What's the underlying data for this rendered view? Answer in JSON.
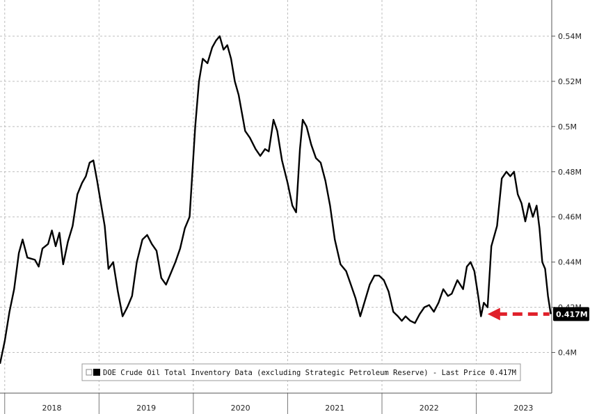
{
  "chart_data": {
    "type": "line",
    "title": "",
    "xlabel": "",
    "ylabel": "",
    "y_unit": "M barrels",
    "ylim": [
      0.382,
      0.556
    ],
    "x_range": [
      2017.95,
      2023.8
    ],
    "x_tick_labels": [
      "2018",
      "2019",
      "2020",
      "2021",
      "2022",
      "2023"
    ],
    "y_ticks": [
      {
        "value": 0.4,
        "label": "0.4M"
      },
      {
        "value": 0.42,
        "label": "0.42M"
      },
      {
        "value": 0.44,
        "label": "0.44M"
      },
      {
        "value": 0.46,
        "label": "0.46M"
      },
      {
        "value": 0.48,
        "label": "0.48M"
      },
      {
        "value": 0.5,
        "label": "0.5M"
      },
      {
        "value": 0.52,
        "label": "0.52M"
      },
      {
        "value": 0.54,
        "label": "0.54M"
      }
    ],
    "grid": true,
    "legend_position": "bottom-center",
    "legend": {
      "text": "DOE Crude Oil Total Inventory Data (excluding Strategic Petroleum Reserve) - Last Price 0.417M"
    },
    "last_value_label": "0.417M",
    "line_color": "#000000",
    "arrow_color": "#e0202a",
    "series": [
      {
        "name": "DOE Crude Oil Total Inventory Data (excluding Strategic Petroleum Reserve)",
        "points": [
          [
            2017.95,
            0.395
          ],
          [
            2018.0,
            0.405
          ],
          [
            2018.05,
            0.418
          ],
          [
            2018.1,
            0.428
          ],
          [
            2018.15,
            0.444
          ],
          [
            2018.19,
            0.45
          ],
          [
            2018.24,
            0.442
          ],
          [
            2018.32,
            0.441
          ],
          [
            2018.36,
            0.438
          ],
          [
            2018.4,
            0.446
          ],
          [
            2018.46,
            0.448
          ],
          [
            2018.5,
            0.454
          ],
          [
            2018.54,
            0.447
          ],
          [
            2018.58,
            0.453
          ],
          [
            2018.62,
            0.439
          ],
          [
            2018.67,
            0.449
          ],
          [
            2018.72,
            0.456
          ],
          [
            2018.77,
            0.47
          ],
          [
            2018.82,
            0.475
          ],
          [
            2018.86,
            0.478
          ],
          [
            2018.9,
            0.484
          ],
          [
            2018.94,
            0.485
          ],
          [
            2018.98,
            0.476
          ],
          [
            2019.02,
            0.466
          ],
          [
            2019.06,
            0.456
          ],
          [
            2019.1,
            0.437
          ],
          [
            2019.15,
            0.44
          ],
          [
            2019.2,
            0.427
          ],
          [
            2019.25,
            0.416
          ],
          [
            2019.3,
            0.42
          ],
          [
            2019.35,
            0.425
          ],
          [
            2019.4,
            0.44
          ],
          [
            2019.46,
            0.45
          ],
          [
            2019.51,
            0.452
          ],
          [
            2019.56,
            0.448
          ],
          [
            2019.61,
            0.445
          ],
          [
            2019.66,
            0.433
          ],
          [
            2019.71,
            0.43
          ],
          [
            2019.76,
            0.435
          ],
          [
            2019.81,
            0.44
          ],
          [
            2019.86,
            0.446
          ],
          [
            2019.91,
            0.455
          ],
          [
            2019.96,
            0.46
          ],
          [
            2020.02,
            0.5
          ],
          [
            2020.06,
            0.52
          ],
          [
            2020.1,
            0.53
          ],
          [
            2020.15,
            0.528
          ],
          [
            2020.2,
            0.535
          ],
          [
            2020.24,
            0.538
          ],
          [
            2020.28,
            0.54
          ],
          [
            2020.32,
            0.534
          ],
          [
            2020.36,
            0.536
          ],
          [
            2020.4,
            0.53
          ],
          [
            2020.44,
            0.52
          ],
          [
            2020.48,
            0.514
          ],
          [
            2020.55,
            0.498
          ],
          [
            2020.6,
            0.495
          ],
          [
            2020.66,
            0.49
          ],
          [
            2020.71,
            0.487
          ],
          [
            2020.76,
            0.49
          ],
          [
            2020.8,
            0.489
          ],
          [
            2020.85,
            0.503
          ],
          [
            2020.89,
            0.498
          ],
          [
            2020.94,
            0.485
          ],
          [
            2021.0,
            0.475
          ],
          [
            2021.05,
            0.465
          ],
          [
            2021.09,
            0.462
          ],
          [
            2021.13,
            0.49
          ],
          [
            2021.16,
            0.503
          ],
          [
            2021.2,
            0.5
          ],
          [
            2021.25,
            0.492
          ],
          [
            2021.3,
            0.486
          ],
          [
            2021.35,
            0.484
          ],
          [
            2021.4,
            0.476
          ],
          [
            2021.45,
            0.465
          ],
          [
            2021.5,
            0.45
          ],
          [
            2021.56,
            0.439
          ],
          [
            2021.62,
            0.436
          ],
          [
            2021.67,
            0.43
          ],
          [
            2021.72,
            0.424
          ],
          [
            2021.77,
            0.416
          ],
          [
            2021.82,
            0.423
          ],
          [
            2021.87,
            0.43
          ],
          [
            2021.92,
            0.434
          ],
          [
            2021.97,
            0.434
          ],
          [
            2022.02,
            0.432
          ],
          [
            2022.07,
            0.427
          ],
          [
            2022.12,
            0.418
          ],
          [
            2022.17,
            0.416
          ],
          [
            2022.21,
            0.414
          ],
          [
            2022.25,
            0.416
          ],
          [
            2022.3,
            0.414
          ],
          [
            2022.35,
            0.413
          ],
          [
            2022.4,
            0.417
          ],
          [
            2022.45,
            0.42
          ],
          [
            2022.5,
            0.421
          ],
          [
            2022.55,
            0.418
          ],
          [
            2022.6,
            0.422
          ],
          [
            2022.65,
            0.428
          ],
          [
            2022.7,
            0.425
          ],
          [
            2022.74,
            0.426
          ],
          [
            2022.8,
            0.432
          ],
          [
            2022.86,
            0.428
          ],
          [
            2022.9,
            0.438
          ],
          [
            2022.94,
            0.44
          ],
          [
            2022.98,
            0.436
          ],
          [
            2023.02,
            0.425
          ],
          [
            2023.05,
            0.416
          ],
          [
            2023.08,
            0.422
          ],
          [
            2023.12,
            0.42
          ],
          [
            2023.16,
            0.447
          ],
          [
            2023.22,
            0.456
          ],
          [
            2023.27,
            0.477
          ],
          [
            2023.32,
            0.48
          ],
          [
            2023.36,
            0.478
          ],
          [
            2023.4,
            0.48
          ],
          [
            2023.44,
            0.47
          ],
          [
            2023.48,
            0.466
          ],
          [
            2023.52,
            0.458
          ],
          [
            2023.56,
            0.466
          ],
          [
            2023.6,
            0.46
          ],
          [
            2023.64,
            0.465
          ],
          [
            2023.67,
            0.455
          ],
          [
            2023.7,
            0.44
          ],
          [
            2023.73,
            0.437
          ],
          [
            2023.76,
            0.425
          ],
          [
            2023.79,
            0.417
          ]
        ]
      }
    ]
  }
}
